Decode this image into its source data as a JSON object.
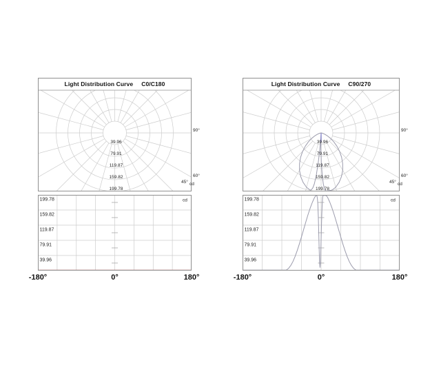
{
  "colors": {
    "background": "#ffffff",
    "grid": "#cccccc",
    "border": "#8f8f8f",
    "tick_dash": "#a8a8a8",
    "text_small": "#222222",
    "text_title": "#111111",
    "curve_c0_c180": "#c87474",
    "curve_c90_270": "#9b9bac",
    "center_mark": "#7878c8"
  },
  "charts": {
    "left": {
      "title": "Light Distribution Curve",
      "plane": "C0/C180"
    },
    "right": {
      "title": "Light Distribution Curve",
      "plane": "C90/270"
    }
  },
  "cartesian": {
    "x_labels": [
      "-180°",
      "0°",
      "180°"
    ],
    "y_labels": [
      "199.78",
      "159.82",
      "119.87",
      "79.91",
      "39.96"
    ],
    "unit": "cd"
  },
  "chart_data": [
    {
      "id": "c0_c180_polar",
      "type": "line",
      "projection": "polar",
      "title": "Light Distribution Curve",
      "plane": "C0/C180",
      "unit": "cd",
      "rmax_cd": 199.78,
      "radial_ticks_cd": [
        39.96,
        79.91,
        119.87,
        159.82,
        199.78
      ],
      "radial_tick_labels": [
        "39.96",
        "79.91",
        "119.87",
        "159.82",
        "199.78"
      ],
      "angle_grid_step_deg": 15,
      "angle_labels": {
        "a45": "45°",
        "a60": "60°",
        "a90": "90°",
        "unit": "cd"
      },
      "series": [
        {
          "name": "C0/C180",
          "color": "#c87474",
          "profile_ref": "c0_c180"
        }
      ]
    },
    {
      "id": "c0_c180_cart",
      "type": "line",
      "plane": "C0/C180",
      "x_range_deg": [
        -180,
        180
      ],
      "x_grid_step_deg": 45,
      "x_tick_labels": [
        "-180°",
        "0°",
        "180°"
      ],
      "y_range_cd": [
        0,
        199.78
      ],
      "y_ticks_cd": [
        199.78,
        159.82,
        119.87,
        79.91,
        39.96
      ],
      "y_tick_labels": [
        "199.78",
        "159.82",
        "119.87",
        "79.91",
        "39.96"
      ],
      "unit": "cd",
      "series": [
        {
          "name": "C0/C180",
          "color": "#c87474",
          "profile_ref": "c0_c180"
        }
      ]
    },
    {
      "id": "c90_270_polar",
      "type": "line",
      "projection": "polar",
      "title": "Light Distribution Curve",
      "plane": "C90/270",
      "unit": "cd",
      "rmax_cd": 199.78,
      "radial_ticks_cd": [
        39.96,
        79.91,
        119.87,
        159.82,
        199.78
      ],
      "radial_tick_labels": [
        "39.96",
        "79.91",
        "119.87",
        "159.82",
        "199.78"
      ],
      "angle_grid_step_deg": 15,
      "angle_labels": {
        "a45": "45°",
        "a60": "60°",
        "a90": "90°",
        "unit": "cd"
      },
      "center_mark": {
        "color": "#7878c8",
        "length_cd": 31
      },
      "series": [
        {
          "name": "C90/270",
          "color": "#9b9bac",
          "profile_ref": "c90_270"
        }
      ]
    },
    {
      "id": "c90_270_cart",
      "type": "line",
      "plane": "C90/270",
      "x_range_deg": [
        -180,
        180
      ],
      "x_grid_step_deg": 45,
      "x_tick_labels": [
        "-180°",
        "0°",
        "180°"
      ],
      "y_range_cd": [
        0,
        199.78
      ],
      "y_ticks_cd": [
        199.78,
        159.82,
        119.87,
        79.91,
        39.96
      ],
      "y_tick_labels": [
        "199.78",
        "159.82",
        "119.87",
        "79.91",
        "39.96"
      ],
      "unit": "cd",
      "series": [
        {
          "name": "C90/270",
          "color": "#9b9bac",
          "profile_ref": "c90_270"
        }
      ]
    }
  ],
  "intensity_profiles": {
    "c0_c180": [
      [
        -180,
        0
      ],
      [
        -90,
        0
      ],
      [
        0,
        0
      ],
      [
        90,
        0
      ],
      [
        180,
        0
      ]
    ],
    "c90_270": [
      [
        -180,
        0
      ],
      [
        -95,
        0
      ],
      [
        -90,
        0
      ],
      [
        -85,
        0.3
      ],
      [
        -80,
        1.5
      ],
      [
        -75,
        5.7
      ],
      [
        -70,
        13.2
      ],
      [
        -65,
        23.5
      ],
      [
        -60,
        36.9
      ],
      [
        -55,
        52.8
      ],
      [
        -50,
        70.5
      ],
      [
        -45,
        89.6
      ],
      [
        -40,
        109.3
      ],
      [
        -35,
        128.9
      ],
      [
        -30,
        148
      ],
      [
        -25,
        165.3
      ],
      [
        -20,
        180.5
      ],
      [
        -15,
        193.1
      ],
      [
        -12,
        197.8
      ],
      [
        -10.5,
        199.7
      ],
      [
        -9.5,
        196.9
      ],
      [
        -8.5,
        190
      ],
      [
        -7.5,
        175.5
      ],
      [
        -6.5,
        145.4
      ],
      [
        -5.5,
        103.7
      ],
      [
        -4.5,
        58.5
      ],
      [
        -3.5,
        22.2
      ],
      [
        -2.5,
        8.4
      ],
      [
        -1.5,
        22.2
      ],
      [
        -0.5,
        58.5
      ],
      [
        0.5,
        103.7
      ],
      [
        1.5,
        145.4
      ],
      [
        2.5,
        175.5
      ],
      [
        3.5,
        194
      ],
      [
        4.5,
        199.78
      ],
      [
        8,
        199.78
      ],
      [
        10,
        199.78
      ],
      [
        12,
        197.8
      ],
      [
        15,
        193.1
      ],
      [
        20,
        180.5
      ],
      [
        25,
        165.3
      ],
      [
        30,
        148
      ],
      [
        35,
        128.9
      ],
      [
        40,
        109.3
      ],
      [
        45,
        89.6
      ],
      [
        50,
        70.5
      ],
      [
        55,
        52.8
      ],
      [
        60,
        36.9
      ],
      [
        65,
        23.5
      ],
      [
        70,
        13.2
      ],
      [
        75,
        5.7
      ],
      [
        80,
        1.5
      ],
      [
        85,
        0.3
      ],
      [
        90,
        0
      ],
      [
        95,
        0
      ],
      [
        180,
        0
      ]
    ]
  }
}
